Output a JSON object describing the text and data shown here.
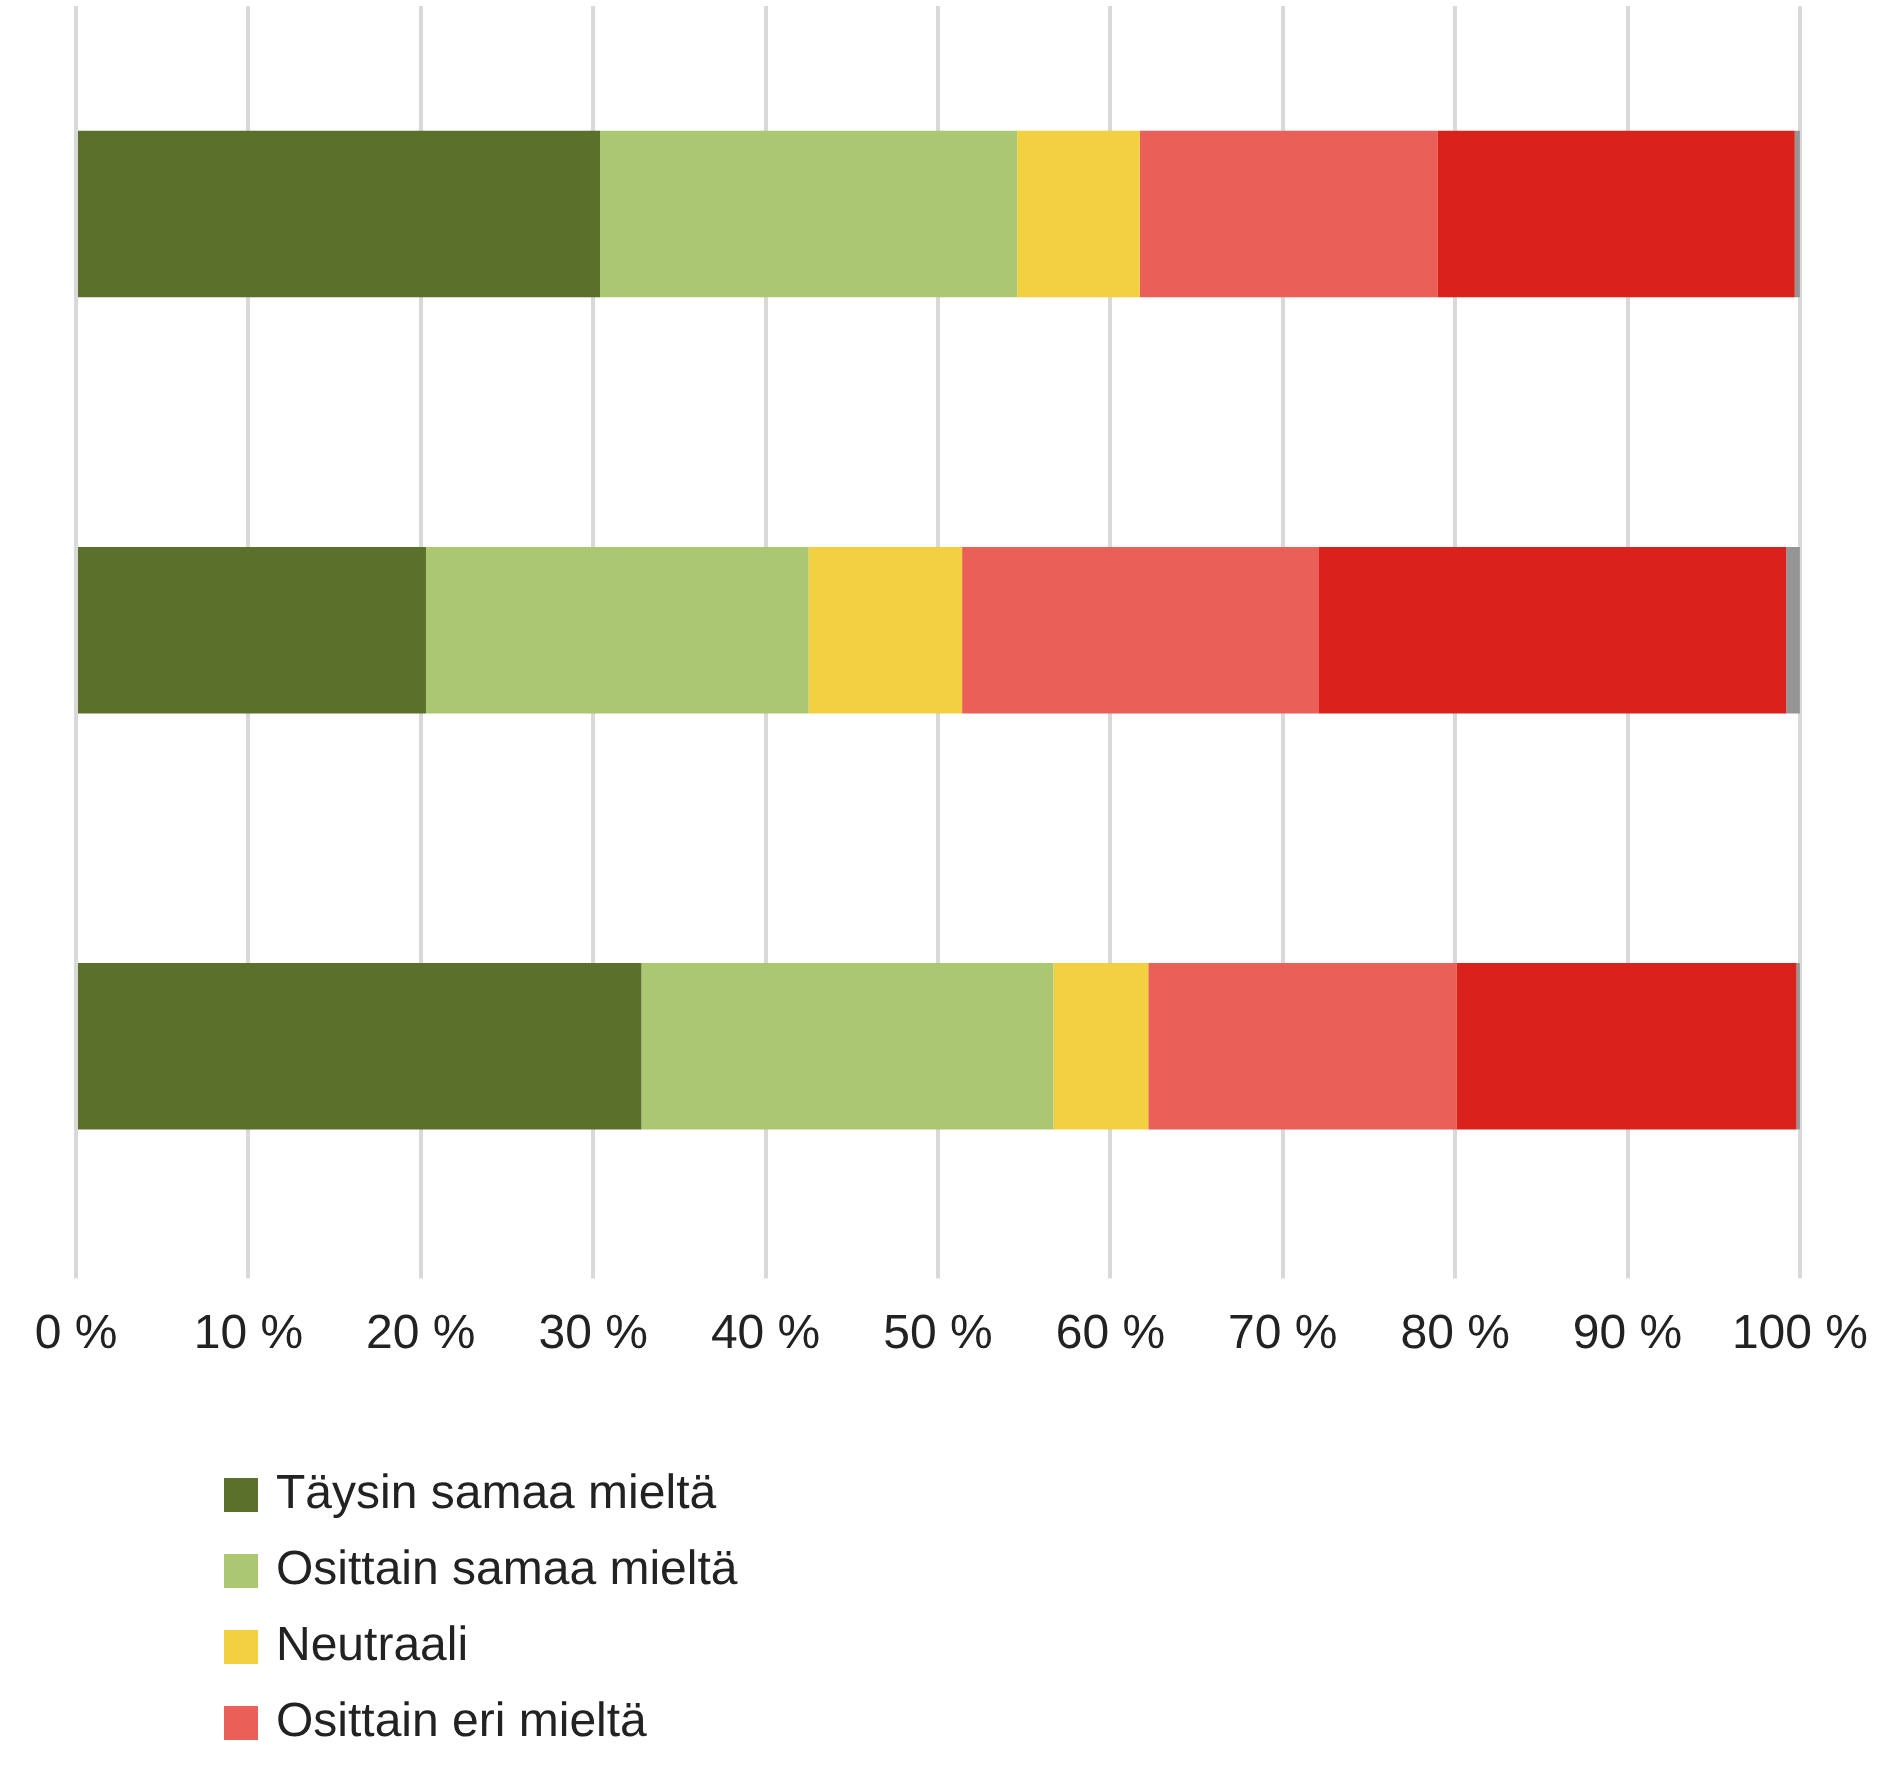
{
  "chart_data": {
    "type": "bar",
    "orientation": "horizontal",
    "stacked": true,
    "categories": [
      null,
      null,
      null
    ],
    "series": [
      {
        "name": "Täysin samaa mieltä",
        "color": "#5a702b",
        "values": [
          30.4,
          20.3,
          32.8
        ]
      },
      {
        "name": "Osittain samaa mieltä",
        "color": "#acc772",
        "values": [
          24.2,
          22.2,
          23.9
        ]
      },
      {
        "name": "Neutraali",
        "color": "#f2d03f",
        "values": [
          7.1,
          8.9,
          5.5
        ]
      },
      {
        "name": "Osittain eri mieltä",
        "color": "#ea5f58",
        "values": [
          17.3,
          20.7,
          17.9
        ]
      },
      {
        "color": "#d9221b",
        "values": [
          20.7,
          27.1,
          19.7
        ]
      },
      {
        "color": "#959595",
        "values": [
          0.3,
          0.8,
          0.2
        ]
      }
    ],
    "xlim": [
      0,
      100
    ],
    "xticks": [
      {
        "value": 0,
        "label": "0 %"
      },
      {
        "value": 10,
        "label": "10 %"
      },
      {
        "value": 20,
        "label": "20 %"
      },
      {
        "value": 30,
        "label": "30 %"
      },
      {
        "value": 40,
        "label": "40 %"
      },
      {
        "value": 50,
        "label": "50 %"
      },
      {
        "value": 60,
        "label": "60 %"
      },
      {
        "value": 70,
        "label": "70 %"
      },
      {
        "value": 80,
        "label": "80 %"
      },
      {
        "value": 90,
        "label": "90 %"
      },
      {
        "value": 100,
        "label": "100 %"
      }
    ],
    "grid": "x",
    "legend": "bottom"
  }
}
